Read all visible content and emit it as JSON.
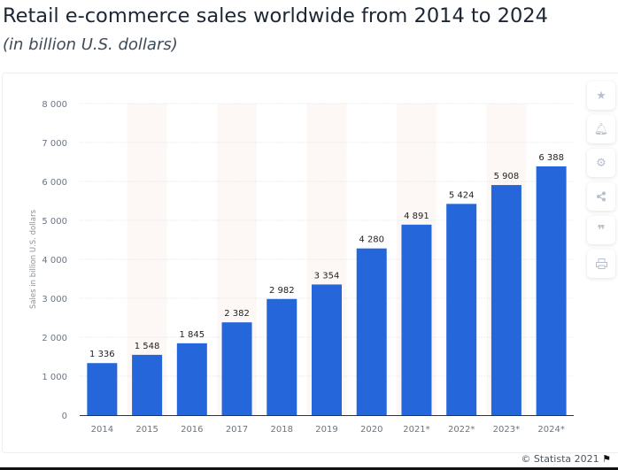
{
  "header": {
    "title": "Retail e-commerce sales worldwide from 2014 to 2024",
    "subtitle": "(in billion U.S. dollars)"
  },
  "chart_data": {
    "type": "bar",
    "title": "Retail e-commerce sales worldwide from 2014 to 2024",
    "subtitle": "(in billion U.S. dollars)",
    "xlabel": "",
    "ylabel": "Sales in billion U.S. dollars",
    "categories": [
      "2014",
      "2015",
      "2016",
      "2017",
      "2018",
      "2019",
      "2020",
      "2021*",
      "2022*",
      "2023*",
      "2024*"
    ],
    "values": [
      1336,
      1548,
      1845,
      2382,
      2982,
      3354,
      4280,
      4891,
      5424,
      5908,
      6388
    ],
    "data_labels": [
      "1 336",
      "1 548",
      "1 845",
      "2 382",
      "2 982",
      "3 354",
      "4 280",
      "4 891",
      "5 424",
      "5 908",
      "6 388"
    ],
    "yticks": [
      0,
      1000,
      2000,
      3000,
      4000,
      5000,
      6000,
      7000,
      8000
    ],
    "ytick_labels": [
      "0",
      "1 000",
      "2 000",
      "3 000",
      "4 000",
      "5 000",
      "6 000",
      "7 000",
      "8 000"
    ],
    "ylim": [
      0,
      8000
    ],
    "grid": true,
    "bar_color": "#2567db"
  },
  "sidebar": {
    "icons": [
      "star-icon",
      "bell-icon",
      "gear-icon",
      "share-icon",
      "quote-icon",
      "print-icon"
    ]
  },
  "footer": {
    "credit": "© Statista 2021",
    "flag_icon": "flag-icon"
  }
}
